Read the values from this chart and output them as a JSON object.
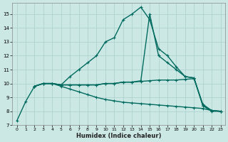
{
  "xlabel": "Humidex (Indice chaleur)",
  "bg_color": "#cce8e5",
  "grid_color": "#aacfcc",
  "line_color": "#006b5e",
  "xlim": [
    -0.5,
    23.5
  ],
  "ylim": [
    7.0,
    15.8
  ],
  "yticks": [
    7,
    8,
    9,
    10,
    11,
    12,
    13,
    14,
    15
  ],
  "xticks": [
    0,
    1,
    2,
    3,
    4,
    5,
    6,
    7,
    8,
    9,
    10,
    11,
    12,
    13,
    14,
    15,
    16,
    17,
    18,
    19,
    20,
    21,
    22,
    23
  ],
  "lines": [
    {
      "x": [
        0,
        1,
        2,
        3,
        4,
        5,
        6,
        7,
        8,
        9,
        10,
        11,
        12,
        13,
        14,
        15,
        16,
        17,
        18,
        19,
        20,
        21,
        22,
        23
      ],
      "y": [
        7.3,
        8.7,
        9.8,
        10.0,
        10.0,
        9.9,
        10.5,
        11.0,
        11.5,
        12.0,
        13.0,
        13.3,
        14.6,
        15.0,
        15.5,
        14.6,
        12.5,
        12.0,
        11.2,
        10.5,
        10.4,
        8.4,
        8.0,
        8.0
      ],
      "ls": "-",
      "lw": 1.0
    },
    {
      "x": [
        2,
        3,
        4,
        5,
        6,
        7,
        8,
        9,
        10,
        11,
        12,
        13,
        14,
        15,
        16,
        17,
        18,
        19,
        20,
        21,
        22,
        23
      ],
      "y": [
        9.8,
        10.0,
        10.0,
        9.9,
        9.9,
        9.9,
        9.9,
        9.9,
        10.0,
        10.0,
        10.1,
        10.1,
        10.2,
        15.0,
        12.0,
        11.5,
        11.0,
        10.5,
        10.4,
        8.4,
        8.05,
        8.0
      ],
      "ls": "-",
      "lw": 1.0
    },
    {
      "x": [
        2,
        3,
        4,
        5,
        6,
        7,
        8,
        9,
        10,
        11,
        12,
        13,
        14,
        15,
        16,
        17,
        18,
        19,
        20,
        21,
        22,
        23
      ],
      "y": [
        9.8,
        10.0,
        10.0,
        9.9,
        9.9,
        9.9,
        9.9,
        9.9,
        10.0,
        10.0,
        10.1,
        10.1,
        10.15,
        10.2,
        10.25,
        10.25,
        10.25,
        10.3,
        10.35,
        8.5,
        8.05,
        8.0
      ],
      "ls": "-",
      "lw": 1.0
    },
    {
      "x": [
        2,
        3,
        4,
        5,
        6,
        7,
        8,
        9,
        10,
        11,
        12,
        13,
        14,
        15,
        16,
        17,
        18,
        19,
        20,
        21,
        22,
        23
      ],
      "y": [
        9.8,
        10.0,
        10.0,
        9.8,
        9.6,
        9.4,
        9.2,
        9.0,
        8.85,
        8.75,
        8.65,
        8.6,
        8.55,
        8.5,
        8.45,
        8.4,
        8.35,
        8.3,
        8.25,
        8.2,
        8.05,
        8.0
      ],
      "ls": "-",
      "lw": 1.0
    }
  ]
}
